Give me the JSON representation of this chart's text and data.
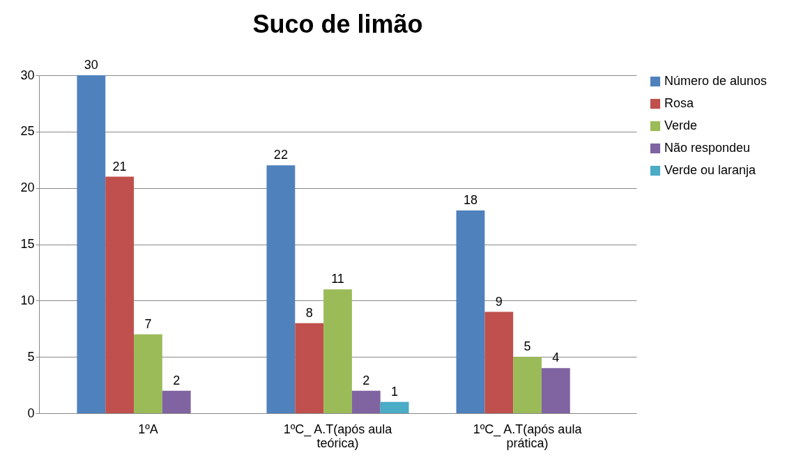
{
  "chart_data": {
    "type": "bar",
    "title": "Suco de limão",
    "categories": [
      "1ºA",
      "1ºC_ A.T(após aula teórica)",
      "1ºC_ A.T(após aula prática)"
    ],
    "series": [
      {
        "name": "Número de alunos",
        "color": "#4f81bd",
        "values": [
          30,
          22,
          18
        ]
      },
      {
        "name": "Rosa",
        "color": "#c0504d",
        "values": [
          21,
          8,
          9
        ]
      },
      {
        "name": "Verde",
        "color": "#9bbb59",
        "values": [
          7,
          11,
          5
        ]
      },
      {
        "name": "Não respondeu",
        "color": "#8064a2",
        "values": [
          2,
          2,
          4
        ]
      },
      {
        "name": "Verde ou laranja",
        "color": "#4bacc6",
        "values": [
          null,
          1,
          null
        ]
      }
    ],
    "ylim": [
      0,
      30
    ],
    "yticks": [
      0,
      5,
      10,
      15,
      20,
      25,
      30
    ],
    "grid": "y",
    "legend": "right",
    "data_labels": true
  }
}
